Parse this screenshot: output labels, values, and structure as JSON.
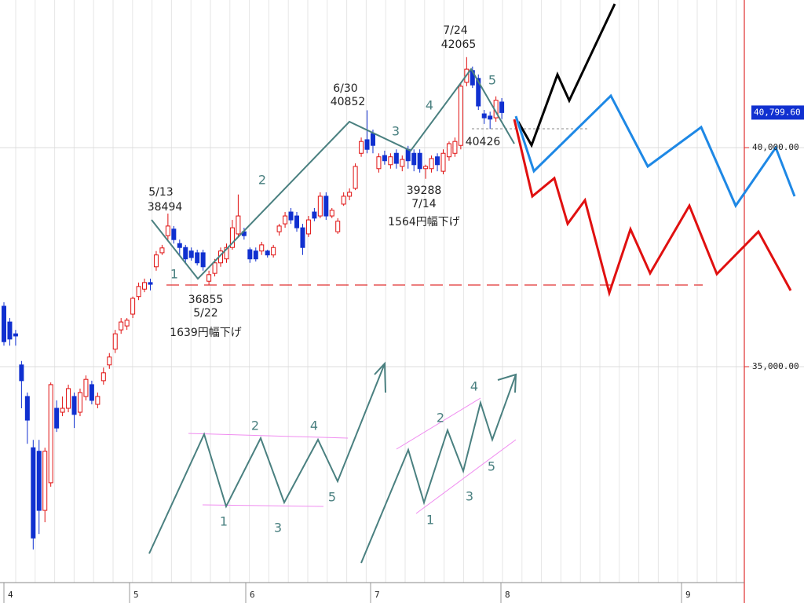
{
  "chart_data": {
    "type": "candlestick",
    "up_color": "#e01010",
    "down_color": "#1030d0",
    "open": [
      36380,
      36020,
      35750,
      35040,
      34320,
      33150,
      33070,
      31720,
      32350,
      34050,
      33960,
      34050,
      34320,
      33960,
      34320,
      34590,
      34140,
      34680,
      35040,
      35400,
      35840,
      35930,
      36200,
      36600,
      36770,
      36920,
      37280,
      37600,
      37990,
      38140,
      37810,
      37720,
      37640,
      37600,
      37600,
      36950,
      37130,
      37370,
      37460,
      37720,
      38030,
      38080,
      37670,
      37640,
      37640,
      37640,
      37550,
      38080,
      38260,
      38530,
      38440,
      38170,
      38030,
      38530,
      38440,
      38890,
      38440,
      38080,
      38710,
      38890,
      39070,
      39870,
      40180,
      40320,
      39520,
      39820,
      39610,
      39870,
      39570,
      39960,
      39870,
      39870,
      39520,
      39520,
      39790,
      39460,
      39790,
      39870,
      40050,
      41490,
      41760,
      41580,
      40770,
      40720,
      40680,
      41040
    ],
    "high": [
      36470,
      36110,
      35840,
      35130,
      34410,
      33330,
      33330,
      33150,
      34640,
      34230,
      34320,
      34590,
      34410,
      34500,
      34800,
      34680,
      34410,
      34980,
      35310,
      35840,
      36110,
      36110,
      36600,
      36920,
      37010,
      37010,
      37640,
      37780,
      38494,
      38210,
      37900,
      37780,
      37720,
      37670,
      37670,
      37190,
      37460,
      37720,
      37810,
      38350,
      38930,
      38170,
      37720,
      37720,
      37850,
      37670,
      37780,
      38260,
      38530,
      38620,
      38530,
      38260,
      38440,
      38620,
      38980,
      38980,
      38620,
      38390,
      38980,
      39070,
      39640,
      40230,
      40852,
      40410,
      39870,
      39930,
      39870,
      39960,
      39820,
      40040,
      39960,
      39960,
      39610,
      39820,
      39870,
      39960,
      40140,
      40230,
      41490,
      42065,
      41850,
      41670,
      40860,
      40820,
      41170,
      41130
    ],
    "low": [
      35480,
      35480,
      35480,
      34050,
      33240,
      30830,
      31180,
      31450,
      32260,
      33510,
      33870,
      33960,
      33600,
      33870,
      34230,
      34140,
      34050,
      34590,
      34950,
      35310,
      35750,
      35840,
      36110,
      36520,
      36700,
      36740,
      37190,
      37550,
      37900,
      37810,
      37550,
      37370,
      37420,
      37310,
      37190,
      36855,
      37060,
      37280,
      37370,
      37670,
      37960,
      37900,
      37370,
      37400,
      37550,
      37490,
      37490,
      37990,
      38170,
      38260,
      38080,
      37550,
      37960,
      38320,
      38390,
      38350,
      38390,
      38030,
      38670,
      38800,
      39030,
      39790,
      39870,
      39870,
      39430,
      39610,
      39520,
      39520,
      39460,
      39520,
      39460,
      39430,
      39288,
      39430,
      39460,
      39390,
      39700,
      39790,
      39960,
      41400,
      41360,
      40860,
      40540,
      40426,
      40590,
      40650
    ],
    "close": [
      35570,
      35630,
      35700,
      34680,
      33780,
      31090,
      31720,
      33070,
      34590,
      33600,
      34050,
      34500,
      33910,
      34410,
      34710,
      34230,
      34320,
      34860,
      35220,
      35750,
      36020,
      36060,
      36560,
      36830,
      36920,
      36880,
      37550,
      37710,
      38210,
      37900,
      37720,
      37460,
      37490,
      37370,
      37280,
      37100,
      37370,
      37640,
      37720,
      38170,
      38440,
      37990,
      37460,
      37460,
      37780,
      37550,
      37720,
      38210,
      38440,
      38350,
      38170,
      37720,
      38350,
      38390,
      38890,
      38440,
      38570,
      38320,
      38890,
      38980,
      39570,
      40140,
      39960,
      40050,
      39790,
      39700,
      39790,
      39640,
      39730,
      39700,
      39610,
      39520,
      39570,
      39750,
      39610,
      39870,
      40090,
      40140,
      41400,
      41790,
      41430,
      40950,
      40680,
      40650,
      41080,
      40799.6
    ],
    "ylim": [
      30072,
      43369
    ],
    "yticks": [
      {
        "value": 35000,
        "label": "35,000.00"
      },
      {
        "value": 40000,
        "label": "40,000.00"
      }
    ],
    "grid": true,
    "last_price": {
      "value": 40799.6,
      "label": "40,799.60"
    },
    "x_labels": [
      "4",
      "5",
      "6",
      "7",
      "8",
      "9"
    ],
    "annotations": [
      {
        "date": "5/13",
        "value": 38494
      },
      {
        "date": "5/22",
        "value": 36855
      },
      {
        "date": "6/30",
        "value": 40852
      },
      {
        "date": "7/24",
        "value": 42065
      },
      {
        "date": "7/14",
        "value": 39288
      },
      {
        "value": 40426
      }
    ],
    "drops": [
      "1639円幅下げ",
      "1564円幅下げ"
    ],
    "waves": {
      "main": [
        "1",
        "2",
        "3",
        "4",
        "5"
      ],
      "flat": [
        "1",
        "2",
        "3",
        "4",
        "5"
      ],
      "rising": [
        "1",
        "2",
        "3",
        "4",
        "5"
      ]
    }
  }
}
